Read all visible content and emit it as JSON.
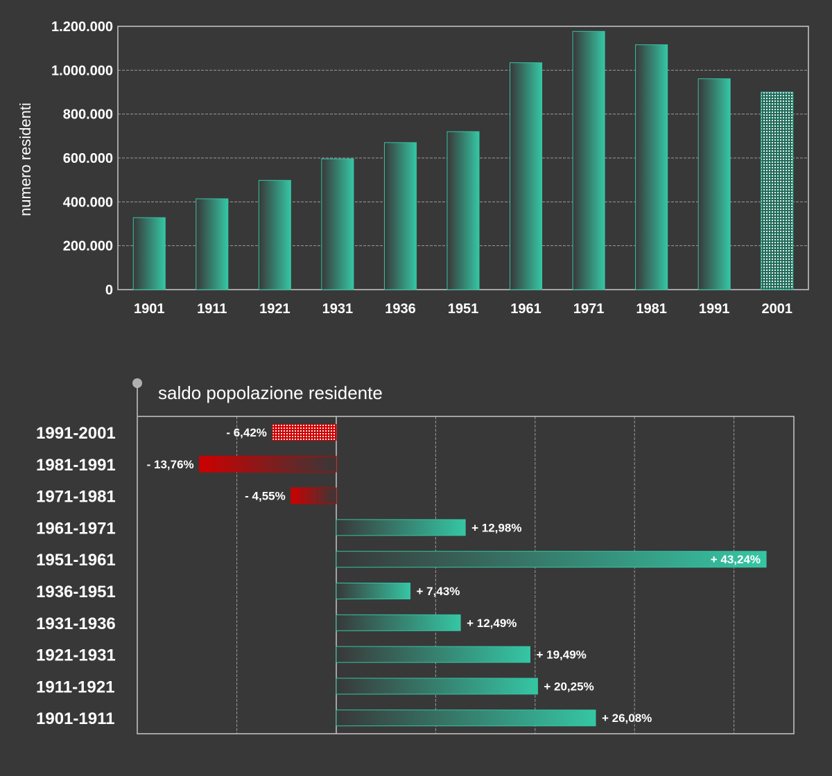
{
  "chart_data": [
    {
      "type": "bar",
      "ylabel": "numero residenti",
      "categories": [
        "1901",
        "1911",
        "1921",
        "1931",
        "1936",
        "1951",
        "1961",
        "1971",
        "1981",
        "1991",
        "2001"
      ],
      "values": [
        328000,
        414000,
        498000,
        596000,
        670000,
        720000,
        1034000,
        1177000,
        1116000,
        961000,
        900000
      ],
      "ylim": [
        0,
        1200000
      ],
      "yticks": [
        0,
        200000,
        400000,
        600000,
        800000,
        1000000,
        1200000
      ],
      "ytick_labels": [
        "0",
        "200.000",
        "400.000",
        "600.000",
        "800.000",
        "1.000.000",
        "1.200.000"
      ],
      "grid": true,
      "highlight_category": "2001"
    },
    {
      "type": "bar",
      "orientation": "horizontal",
      "title": "saldo popolazione residente",
      "categories": [
        "1991-2001",
        "1981-1991",
        "1971-1981",
        "1961-1971",
        "1951-1961",
        "1936-1951",
        "1931-1936",
        "1921-1931",
        "1911-1921",
        "1901-1911"
      ],
      "values": [
        -6.42,
        -13.76,
        -4.55,
        12.98,
        43.24,
        7.43,
        12.49,
        19.49,
        20.25,
        26.08
      ],
      "value_labels": [
        "- 6,42%",
        "- 13,76%",
        "- 4,55%",
        "+ 12,98%",
        "+ 43,24%",
        "+ 7,43%",
        "+ 12,49%",
        "+ 19,49%",
        "+ 20,25%",
        "+ 26,08%"
      ],
      "xlim": [
        -20,
        46
      ],
      "grid": true,
      "highlight_category": "1991-2001"
    }
  ],
  "colors": {
    "background": "#383838",
    "positive": "#35c6a4",
    "negative": "#cc0000",
    "axis": "#c8c8c8",
    "grid": "#9a9a9a",
    "text": "#ffffff"
  }
}
